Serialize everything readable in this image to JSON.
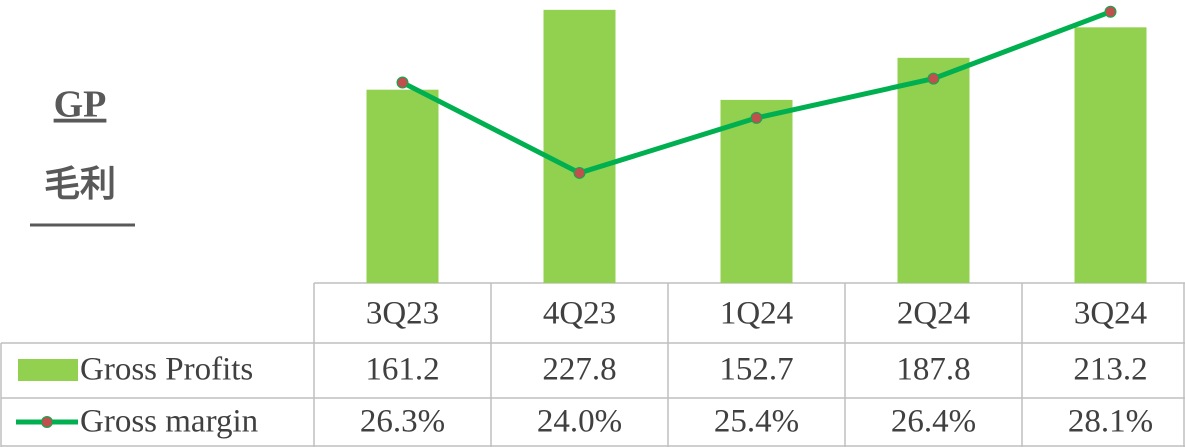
{
  "chart_data": {
    "type": "bar_line_table",
    "title": "GP",
    "subtitle": "毛利",
    "categories": [
      "3Q23",
      "4Q23",
      "1Q24",
      "2Q24",
      "3Q24"
    ],
    "series": [
      {
        "name": "Gross Profits",
        "color": "#92d050",
        "values": [
          161.2,
          227.8,
          152.7,
          187.8,
          213.2
        ]
      },
      {
        "name": "Gross margin",
        "color": "#00b050",
        "marker_color": "#c0504d",
        "axis": "y2",
        "values": [
          26.3,
          24.0,
          25.4,
          26.4,
          28.1
        ],
        "value_labels": [
          "26.3%",
          "24.0%",
          "25.4%",
          "26.4%",
          "28.1%"
        ]
      }
    ],
    "ylim": [
      0,
      236
    ],
    "y2lim": [
      21.2,
      28.4
    ]
  }
}
